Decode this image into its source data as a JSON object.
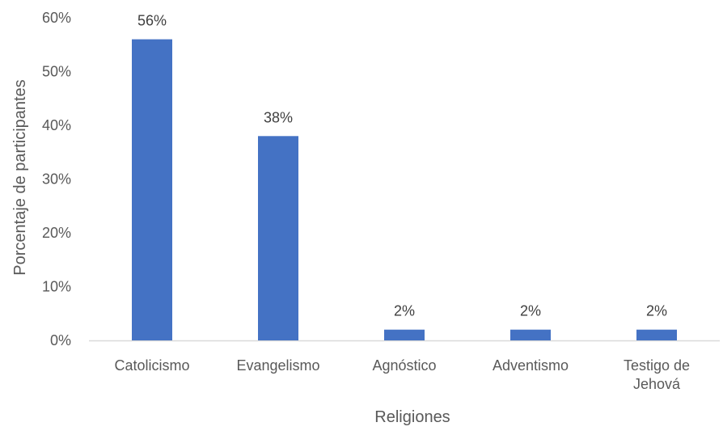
{
  "chart_data": {
    "type": "bar",
    "categories": [
      [
        "Catolicismo"
      ],
      [
        "Evangelismo"
      ],
      [
        "Agnóstico"
      ],
      [
        "Adventismo"
      ],
      [
        "Testigo de",
        "Jehová"
      ]
    ],
    "values": [
      56,
      38,
      2,
      2,
      2
    ],
    "data_labels": [
      "56%",
      "38%",
      "2%",
      "2%",
      "2%"
    ],
    "title": "",
    "xlabel": "Religiones",
    "ylabel": "Porcentaje de participantes",
    "ylim": [
      0,
      60
    ],
    "yticks": [
      0,
      10,
      20,
      30,
      40,
      50,
      60
    ],
    "ytick_labels": [
      "0%",
      "10%",
      "20%",
      "30%",
      "40%",
      "50%",
      "60%"
    ],
    "grid": false,
    "legend": "none",
    "bar_color": "#4472C4",
    "axis_color": "#D9D9D9"
  }
}
